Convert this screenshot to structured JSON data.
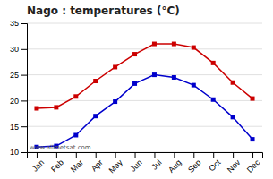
{
  "chart_data": {
    "type": "line",
    "title": "Nago : temperatures (°C)",
    "categories": [
      "Jan",
      "Feb",
      "Mar",
      "Apr",
      "May",
      "Jun",
      "Jul",
      "Aug",
      "Sep",
      "Oct",
      "Nov",
      "Dec"
    ],
    "series": [
      {
        "color": "#cc0000",
        "marker": "square",
        "values": [
          18.5,
          18.7,
          20.8,
          23.8,
          26.5,
          29.0,
          31.0,
          31.0,
          30.3,
          27.3,
          23.5,
          20.4
        ]
      },
      {
        "color": "#0000cc",
        "marker": "square",
        "values": [
          11.0,
          11.2,
          13.3,
          17.0,
          19.8,
          23.3,
          25.0,
          24.5,
          23.0,
          20.2,
          16.8,
          12.5
        ]
      }
    ],
    "ylim": [
      10,
      35
    ],
    "yticks": [
      10,
      15,
      20,
      25,
      30,
      35
    ],
    "grid": true,
    "annotations": [
      "www.allmetsat.com"
    ]
  }
}
